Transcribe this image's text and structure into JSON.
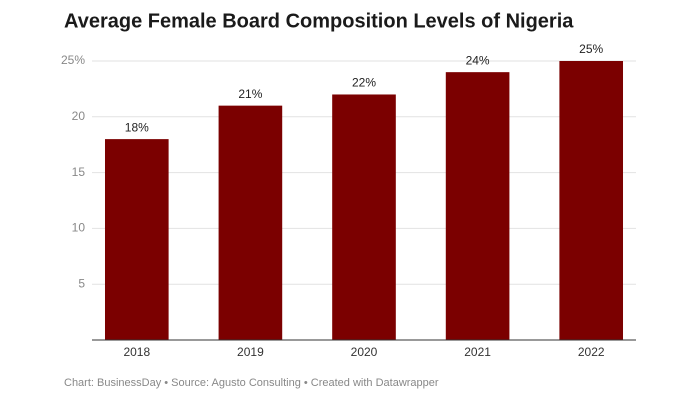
{
  "chart_data": {
    "type": "bar",
    "title": "Average Female Board Composition Levels of Nigeria",
    "categories": [
      "2018",
      "2019",
      "2020",
      "2021",
      "2022"
    ],
    "values": [
      18,
      21,
      22,
      24,
      25
    ],
    "value_labels": [
      "18%",
      "21%",
      "22%",
      "24%",
      "25%"
    ],
    "color": "#7b0000",
    "ylim": [
      0,
      25
    ],
    "yticks": [
      5,
      10,
      15,
      20,
      {
        "value": 25,
        "label": "25%"
      }
    ],
    "grid": true,
    "footer": "Chart: BusinessDay • Source: Agusto Consulting • Created with Datawrapper"
  }
}
